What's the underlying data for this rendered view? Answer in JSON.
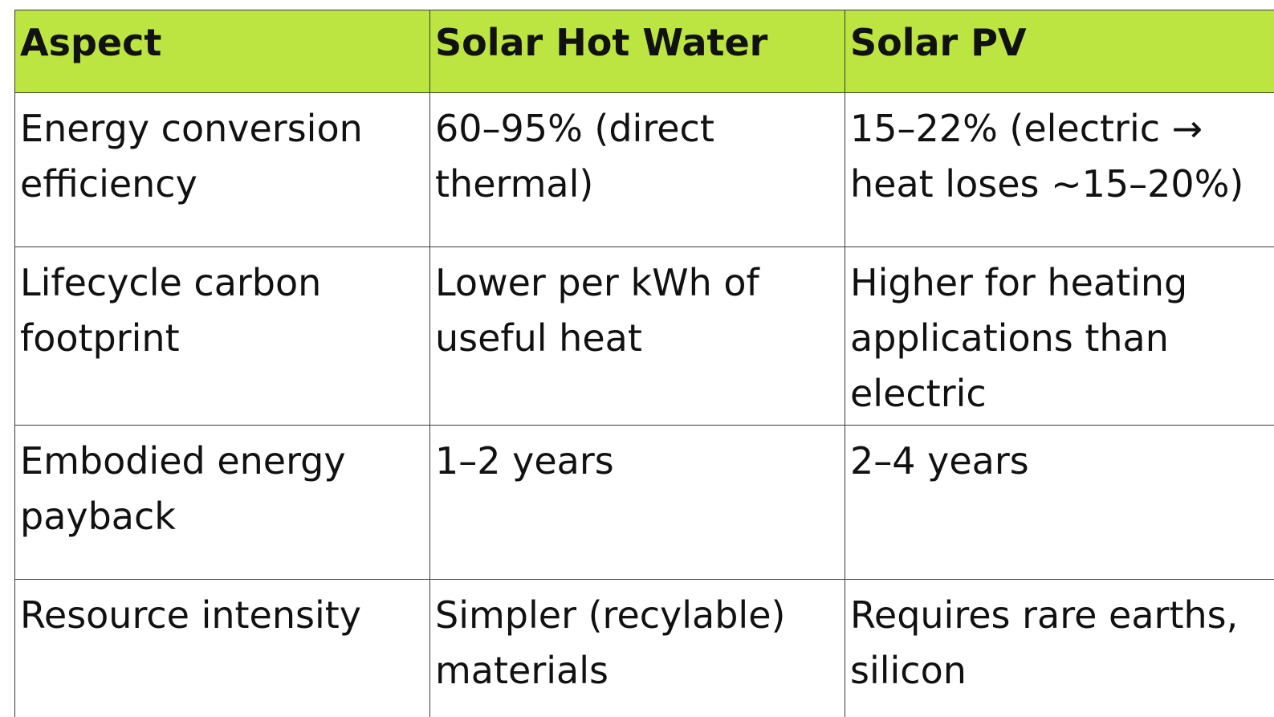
{
  "table": {
    "headers": [
      "Aspect",
      "Solar Hot Water",
      "Solar PV"
    ],
    "rows": [
      [
        "Energy conversion efficiency",
        "60–95% (direct thermal)",
        "15–22% (electric → heat loses ~15–20%)"
      ],
      [
        "Lifecycle carbon footprint",
        "Lower per kWh of useful heat",
        "Higher for heating applications than electric"
      ],
      [
        "Embodied energy payback",
        "1–2 years",
        "2–4 years"
      ],
      [
        "Resource intensity",
        "Simpler (recylable) materials",
        "Requires rare earths, silicon"
      ]
    ]
  },
  "colors": {
    "header_background": "#bce541",
    "border": "#3a3a3a",
    "text": "#111111"
  }
}
